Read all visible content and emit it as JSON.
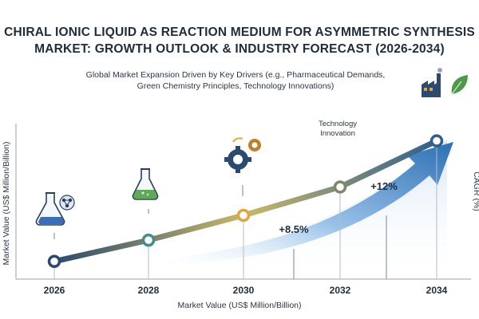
{
  "chart_data": {
    "type": "line",
    "title_lines": [
      "CHIRAL IONIC LIQUID AS REACTION MEDIUM FOR ASYMMETRIC SYNTHESIS",
      "MARKET: GROWTH OUTLOOK & INDUSTRY FORECAST (2026-2034)"
    ],
    "subtitle_lines": [
      "Global Market Expansion Driven by Key Drivers (e.g., Pharmaceutical Demands,",
      "Green Chemistry Principles, Technology Innovations)"
    ],
    "xlabel": "Market Value (US$ Million/Billion)",
    "ylabel": "Market Value (US$ Million/Billion)",
    "y2label": "CAGR (%)",
    "categories": [
      "2026",
      "2028",
      "2030",
      "2032",
      "2034"
    ],
    "values": [
      1,
      2.2,
      3.6,
      5.2,
      7.8
    ],
    "ylim": [
      0,
      9
    ],
    "annotations": [
      {
        "text": "+8.5%",
        "near": "2031"
      },
      {
        "text": "+12%",
        "near": "2033"
      }
    ],
    "callout": [
      "Technology",
      "Innovation"
    ],
    "grid": false,
    "legend": "none"
  },
  "colors": {
    "line_start": "#2c4a6e",
    "line_mid": "#b9b57a",
    "line_end": "#2f5f8f",
    "arrow": "#2d6fb4",
    "marker_mid": "#e0a545",
    "text": "#1f2c3a"
  },
  "icons": [
    "flask-molecule-icon",
    "erlenmeyer-flask-icon",
    "gears-icon",
    "factory-leaf-icon"
  ]
}
